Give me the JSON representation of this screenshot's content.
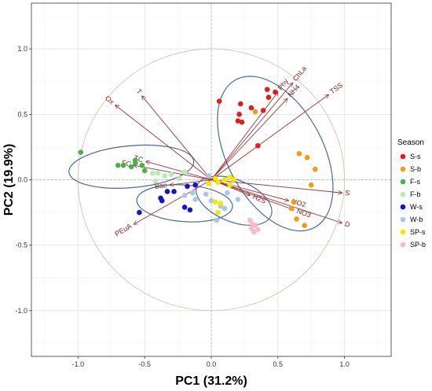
{
  "chart_data": {
    "type": "scatter",
    "subtype": "pca-biplot",
    "xlabel": "PC1 (31.2%)",
    "ylabel": "PC2 (19.9%)",
    "xlim": [
      -1.35,
      1.35
    ],
    "ylim": [
      -1.35,
      1.35
    ],
    "x_ticks": [
      -1.0,
      -0.5,
      0.0,
      0.5,
      1.0
    ],
    "x_tick_labels": [
      "-1.0",
      "-0.5",
      "0.0",
      "0.5",
      "1.0"
    ],
    "y_ticks": [
      -1.0,
      -0.5,
      0.0,
      0.5,
      1.0
    ],
    "y_tick_labels": [
      "-1.0",
      "-0.5",
      "0.0",
      "0.5",
      "1.0"
    ],
    "grid": true,
    "legend": {
      "title": "Season",
      "position": "right"
    },
    "unit_circle": true,
    "series": [
      {
        "name": "S-s",
        "color": "#e41a1c",
        "points": [
          [
            0.06,
            0.6
          ],
          [
            0.22,
            0.58
          ],
          [
            0.3,
            0.55
          ],
          [
            0.39,
            0.53
          ],
          [
            0.42,
            0.69
          ],
          [
            0.43,
            0.63
          ],
          [
            0.48,
            0.67
          ],
          [
            0.21,
            0.5
          ],
          [
            0.2,
            0.45
          ],
          [
            0.23,
            0.44
          ],
          [
            0.35,
            0.26
          ]
        ]
      },
      {
        "name": "S-b",
        "color": "#f39c12",
        "points": [
          [
            0.33,
            0.52
          ],
          [
            0.66,
            0.2
          ],
          [
            0.72,
            0.17
          ],
          [
            0.78,
            0.08
          ],
          [
            0.75,
            -0.04
          ],
          [
            0.62,
            -0.17
          ],
          [
            0.6,
            -0.22
          ],
          [
            0.64,
            -0.3
          ],
          [
            0.7,
            -0.35
          ]
        ]
      },
      {
        "name": "F-s",
        "color": "#4daf4a",
        "points": [
          [
            -0.98,
            0.21
          ],
          [
            -0.7,
            0.11
          ],
          [
            -0.66,
            0.11
          ],
          [
            -0.6,
            0.1
          ],
          [
            -0.57,
            0.15
          ],
          [
            -0.57,
            0.13
          ],
          [
            -0.52,
            0.11
          ],
          [
            -0.5,
            0.07
          ]
        ]
      },
      {
        "name": "F-b",
        "color": "#b7ebb5",
        "points": [
          [
            -0.44,
            0.05
          ],
          [
            -0.4,
            0.05
          ],
          [
            -0.35,
            0.03
          ],
          [
            -0.3,
            0.04
          ],
          [
            -0.2,
            0.06
          ],
          [
            -0.24,
            0.01
          ],
          [
            -0.42,
            -0.01
          ]
        ]
      },
      {
        "name": "W-s",
        "color": "#1515c8",
        "points": [
          [
            -0.54,
            -0.25
          ],
          [
            -0.38,
            -0.14
          ],
          [
            -0.37,
            -0.16
          ],
          [
            -0.33,
            -0.09
          ],
          [
            -0.28,
            -0.09
          ],
          [
            -0.2,
            -0.21
          ],
          [
            -0.16,
            -0.23
          ],
          [
            -0.18,
            -0.05
          ],
          [
            -0.12,
            -0.04
          ]
        ]
      },
      {
        "name": "W-b",
        "color": "#aac8e4",
        "points": [
          [
            -0.2,
            -0.12
          ],
          [
            -0.14,
            -0.1
          ],
          [
            -0.12,
            -0.15
          ],
          [
            -0.04,
            -0.11
          ],
          [
            0.0,
            -0.16
          ],
          [
            0.07,
            -0.2
          ],
          [
            0.1,
            -0.22
          ],
          [
            0.04,
            -0.31
          ],
          [
            0.12,
            -0.1
          ],
          [
            0.2,
            -0.15
          ],
          [
            -0.02,
            0.03
          ]
        ]
      },
      {
        "name": "SP-s",
        "color": "#f5e800",
        "points": [
          [
            -0.02,
            -0.03
          ],
          [
            0.03,
            0.01
          ],
          [
            0.05,
            -0.02
          ],
          [
            0.1,
            0.0
          ],
          [
            0.14,
            0.02
          ],
          [
            0.17,
            0.0
          ],
          [
            0.14,
            -0.04
          ],
          [
            0.03,
            -0.17
          ],
          [
            0.07,
            -0.18
          ],
          [
            0.05,
            -0.25
          ]
        ]
      },
      {
        "name": "SP-b",
        "color": "#f7bcc7",
        "points": [
          [
            0.29,
            -0.31
          ],
          [
            0.31,
            -0.34
          ],
          [
            0.33,
            -0.35
          ],
          [
            0.3,
            -0.37
          ],
          [
            0.32,
            -0.4
          ],
          [
            0.35,
            -0.38
          ]
        ]
      }
    ],
    "loadings": [
      {
        "label": "T",
        "x": -0.52,
        "y": 0.64
      },
      {
        "label": "Ox",
        "x": -0.72,
        "y": 0.57
      },
      {
        "label": "FC",
        "x": -0.58,
        "y": 0.11
      },
      {
        "label": "TC",
        "x": -0.49,
        "y": 0.14
      },
      {
        "label": "Bac",
        "x": -0.31,
        "y": -0.04
      },
      {
        "label": "PEuA",
        "x": -0.58,
        "y": -0.34
      },
      {
        "label": "Phy",
        "x": 0.5,
        "y": 0.67
      },
      {
        "label": "ChLa",
        "x": 0.61,
        "y": 0.74
      },
      {
        "label": "NH4",
        "x": 0.57,
        "y": 0.62
      },
      {
        "label": "TSS",
        "x": 0.88,
        "y": 0.65
      },
      {
        "label": "S",
        "x": 0.98,
        "y": -0.1
      },
      {
        "label": "D",
        "x": 0.98,
        "y": -0.33
      },
      {
        "label": "NO2",
        "x": 0.58,
        "y": -0.16
      },
      {
        "label": "NO3",
        "x": 0.62,
        "y": -0.23
      },
      {
        "label": "H2S",
        "x": 0.29,
        "y": -0.12
      }
    ],
    "ellipses": [
      {
        "group": "S",
        "cx": 0.48,
        "cy": 0.2,
        "rx": 0.36,
        "ry": 0.64,
        "angle": 28
      },
      {
        "group": "F",
        "cx": -0.6,
        "cy": 0.1,
        "rx": 0.47,
        "ry": 0.16,
        "angle": 5
      },
      {
        "group": "W",
        "cx": -0.2,
        "cy": -0.18,
        "rx": 0.36,
        "ry": 0.14,
        "angle": -4
      },
      {
        "group": "SP",
        "cx": 0.17,
        "cy": -0.16,
        "rx": 0.3,
        "ry": 0.16,
        "angle": -22
      }
    ]
  }
}
